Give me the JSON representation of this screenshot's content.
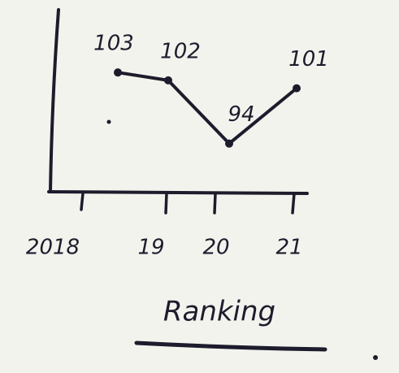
{
  "chart_data": {
    "type": "line",
    "title": "Ranking",
    "categories": [
      "2018",
      "19",
      "20",
      "21"
    ],
    "values": [
      103,
      102,
      94,
      101
    ],
    "color": "#1c1c2c",
    "ylim": [
      88,
      106
    ]
  }
}
